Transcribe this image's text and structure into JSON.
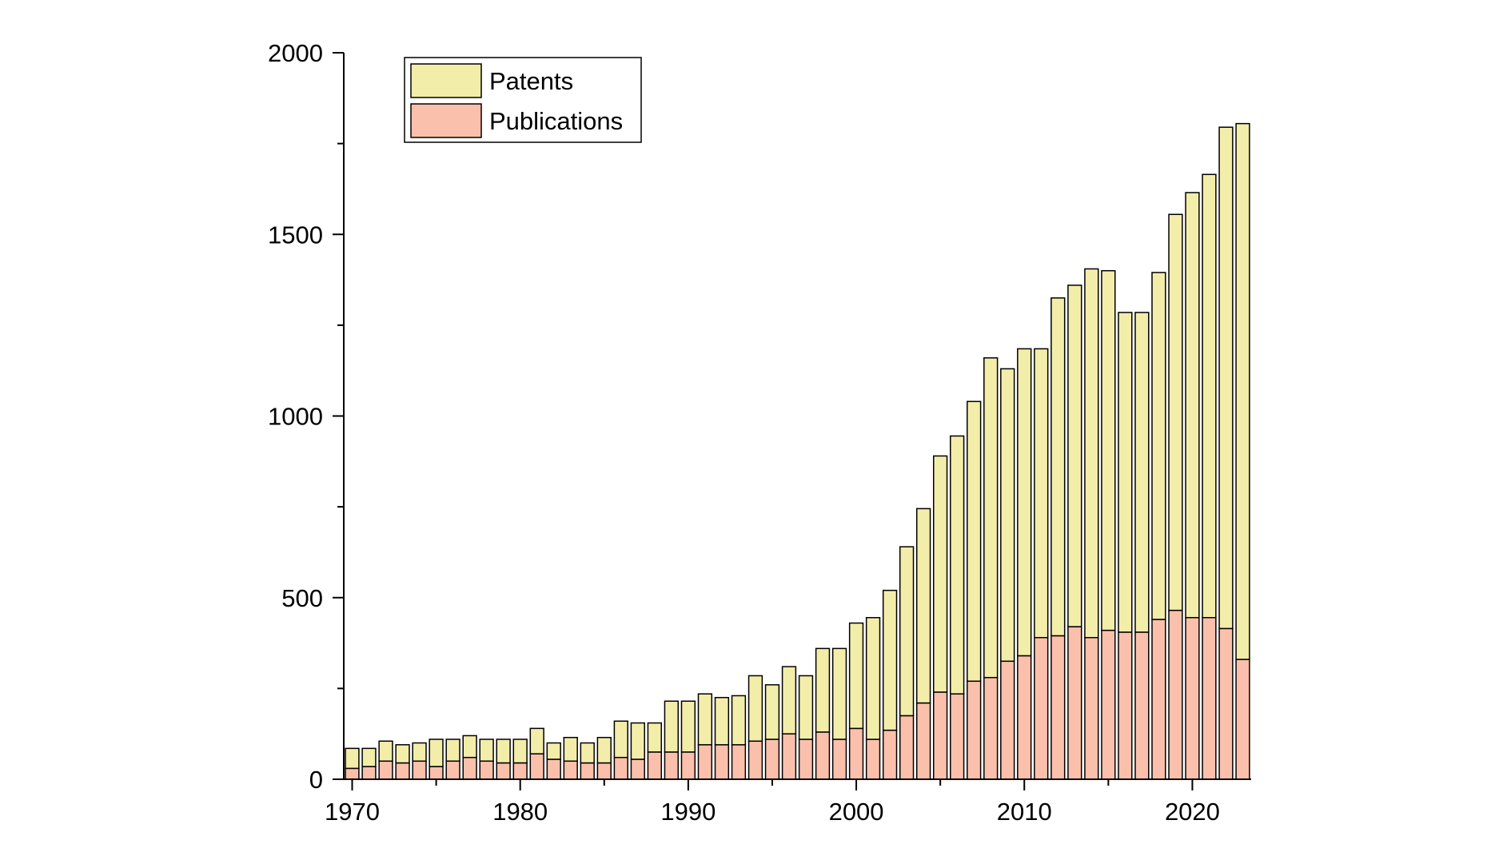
{
  "chart_data": {
    "type": "bar",
    "stacked": true,
    "title": "",
    "xlabel": "",
    "ylabel": "",
    "ylim": [
      0,
      2000
    ],
    "xlim": [
      1969.5,
      2023.5
    ],
    "y_ticks": [
      0,
      500,
      1000,
      1500,
      2000
    ],
    "x_ticks": [
      1970,
      1980,
      1990,
      2000,
      2010,
      2020
    ],
    "grid": false,
    "legend_position": "top-left",
    "x": [
      1970,
      1971,
      1972,
      1973,
      1974,
      1975,
      1976,
      1977,
      1978,
      1979,
      1980,
      1981,
      1982,
      1983,
      1984,
      1985,
      1986,
      1987,
      1988,
      1989,
      1990,
      1991,
      1992,
      1993,
      1994,
      1995,
      1996,
      1997,
      1998,
      1999,
      2000,
      2001,
      2002,
      2003,
      2004,
      2005,
      2006,
      2007,
      2008,
      2009,
      2010,
      2011,
      2012,
      2013,
      2014,
      2015,
      2016,
      2017,
      2018,
      2019,
      2020,
      2021,
      2022,
      2023
    ],
    "series": [
      {
        "name": "Publications",
        "color": "#FBC0AB",
        "values": [
          30,
          35,
          50,
          45,
          50,
          35,
          50,
          60,
          50,
          45,
          45,
          70,
          55,
          50,
          45,
          45,
          60,
          55,
          75,
          75,
          75,
          95,
          95,
          95,
          105,
          110,
          125,
          110,
          130,
          110,
          140,
          110,
          135,
          175,
          210,
          240,
          235,
          270,
          280,
          325,
          340,
          390,
          395,
          420,
          390,
          410,
          405,
          405,
          440,
          465,
          445,
          445,
          415,
          330
        ]
      },
      {
        "name": "Patents",
        "color": "#F3EDAA",
        "values": [
          55,
          50,
          55,
          50,
          50,
          75,
          60,
          60,
          60,
          65,
          65,
          70,
          45,
          65,
          55,
          70,
          100,
          100,
          80,
          140,
          140,
          140,
          130,
          135,
          180,
          150,
          185,
          175,
          230,
          250,
          290,
          335,
          385,
          465,
          535,
          650,
          710,
          770,
          880,
          805,
          845,
          795,
          930,
          940,
          1015,
          990,
          880,
          880,
          955,
          1090,
          1170,
          1220,
          1380,
          1475
        ]
      }
    ]
  }
}
